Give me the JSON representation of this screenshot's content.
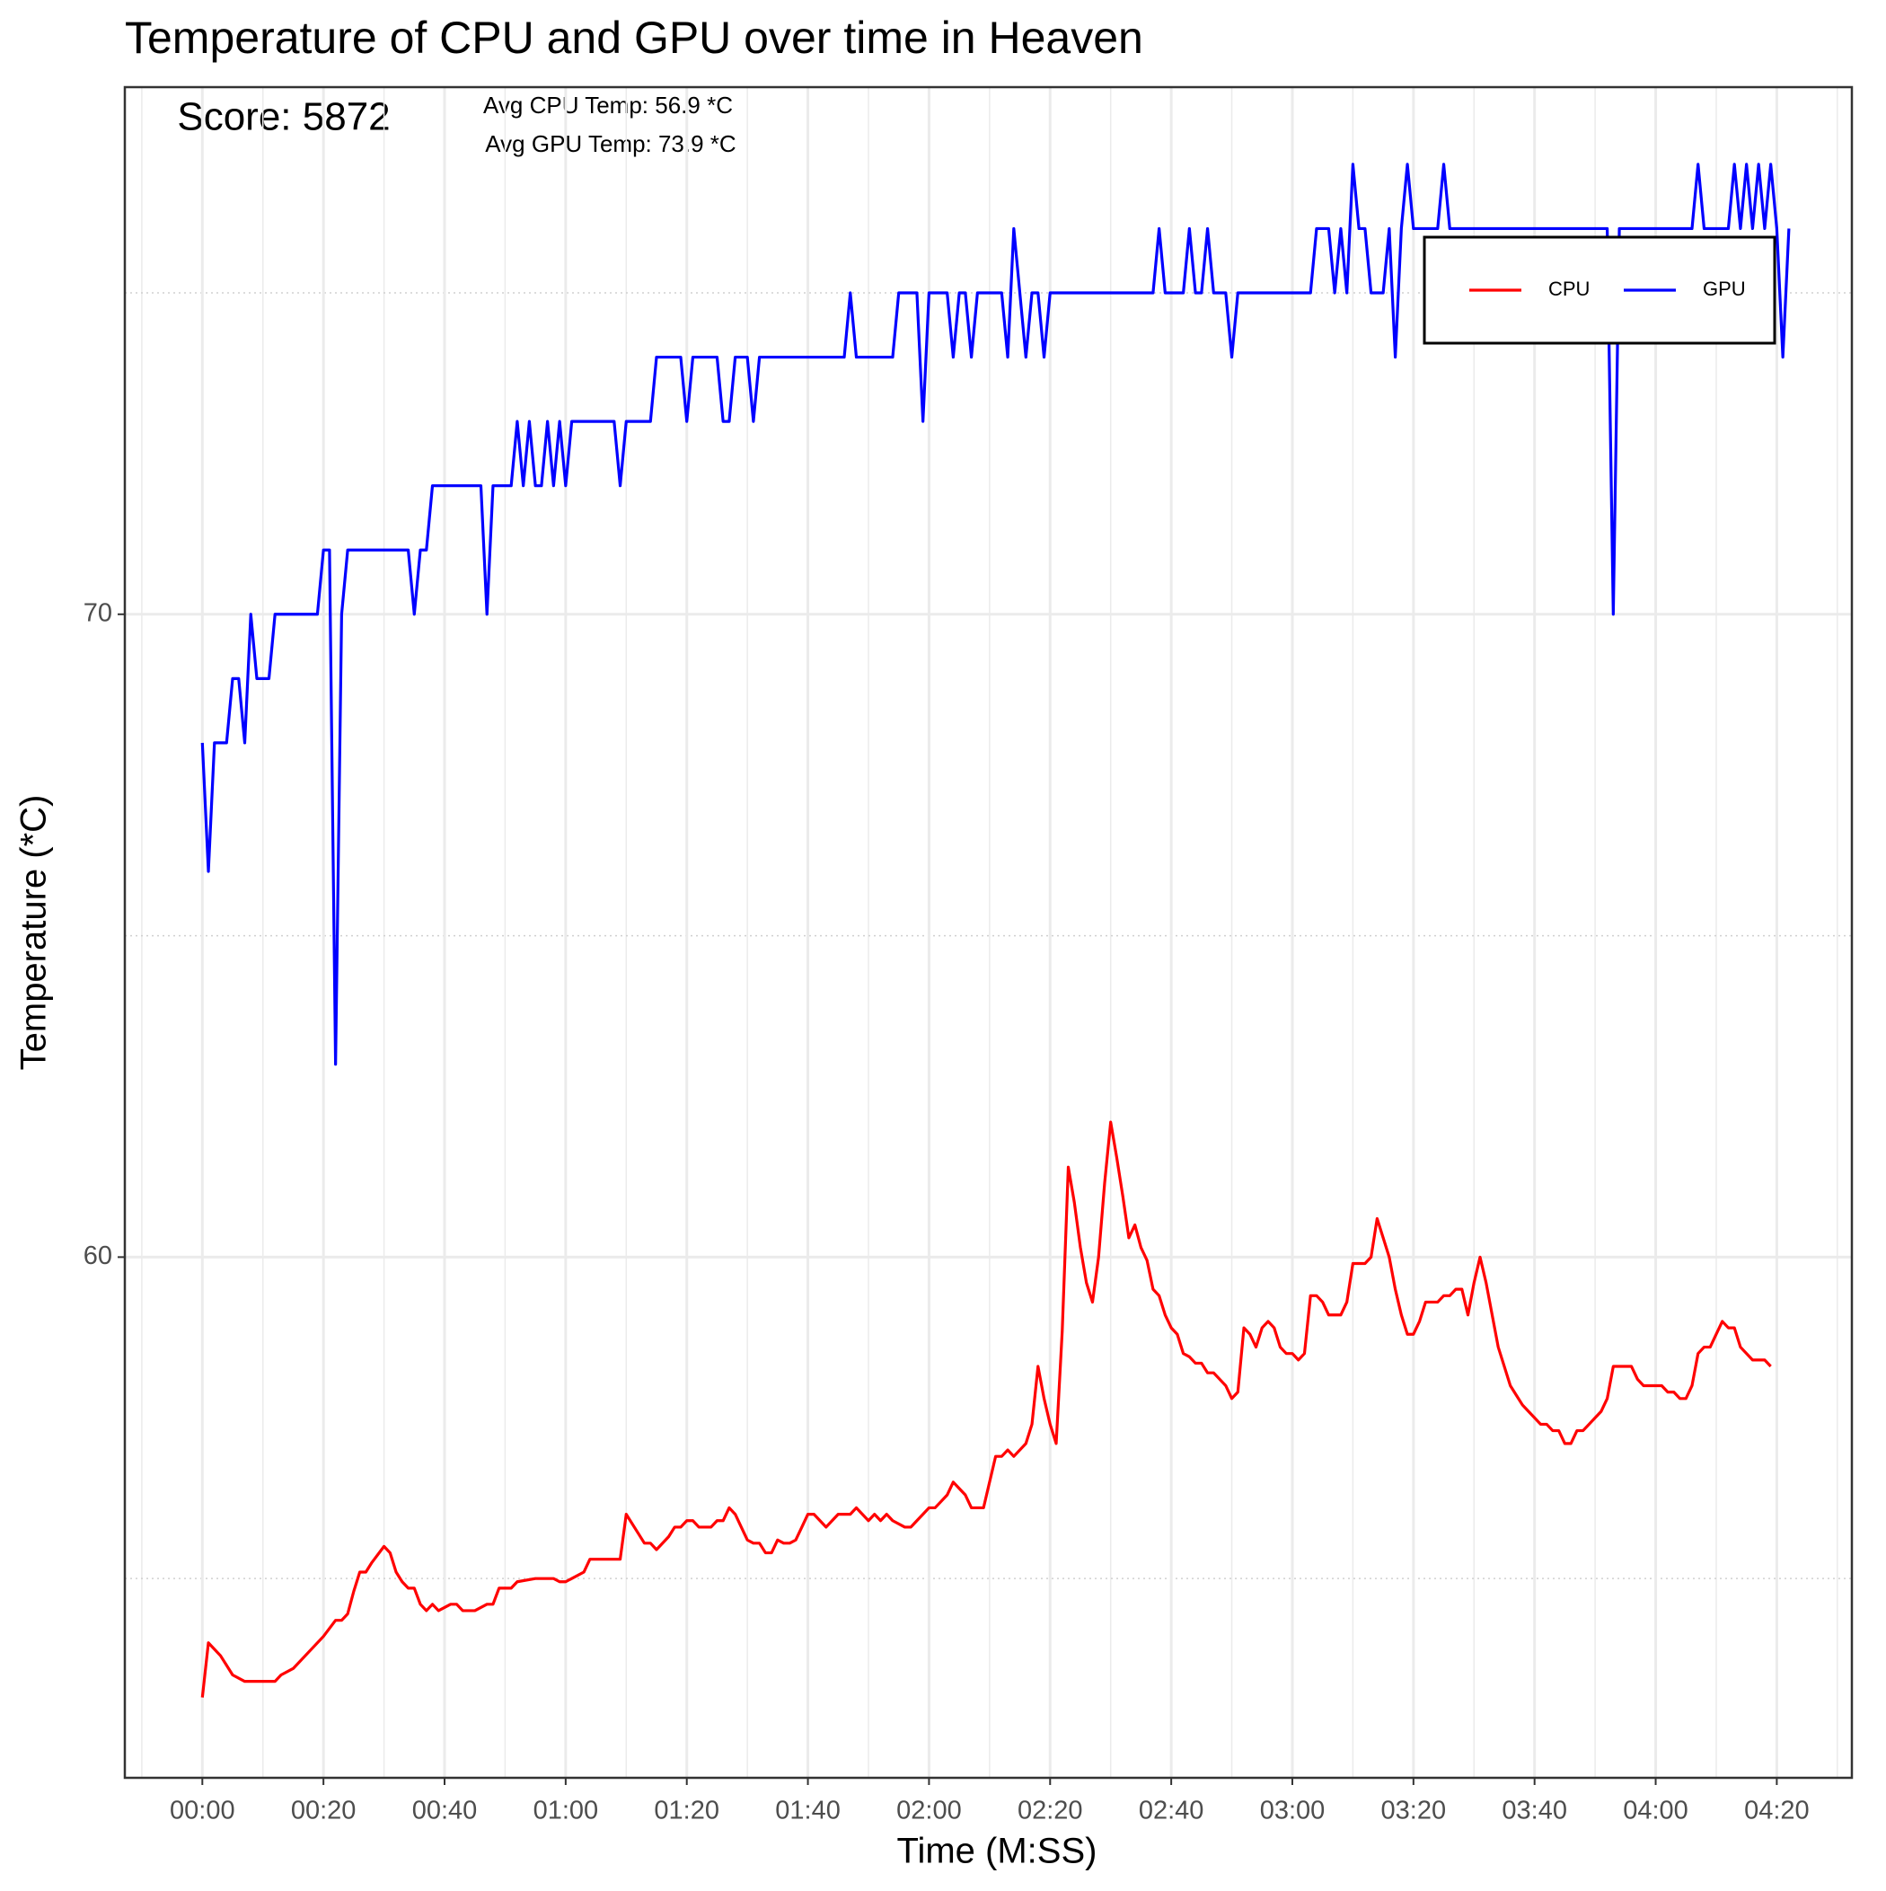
{
  "chart_data": {
    "type": "line",
    "title": "Temperature of CPU and GPU over time in Heaven",
    "x_label": "Time (M:SS)",
    "y_label": "Temperature (*C)",
    "annotations": [
      "Score: 5872",
      "Avg CPU Temp: 56.9 *C",
      "Avg GPU Temp: 73.9 *C"
    ],
    "xlim": [
      -12.8,
      272.4
    ],
    "ylim": [
      51.9,
      78.2
    ],
    "xticks": [
      {
        "value": 0,
        "label": "00:00"
      },
      {
        "value": 20,
        "label": "00:20"
      },
      {
        "value": 40,
        "label": "00:40"
      },
      {
        "value": 60,
        "label": "01:00"
      },
      {
        "value": 80,
        "label": "01:20"
      },
      {
        "value": 100,
        "label": "01:40"
      },
      {
        "value": 120,
        "label": "02:00"
      },
      {
        "value": 140,
        "label": "02:20"
      },
      {
        "value": 160,
        "label": "02:40"
      },
      {
        "value": 180,
        "label": "03:00"
      },
      {
        "value": 200,
        "label": "03:20"
      },
      {
        "value": 220,
        "label": "03:40"
      },
      {
        "value": 240,
        "label": "04:00"
      },
      {
        "value": 260,
        "label": "04:20"
      }
    ],
    "xminorticks": [
      -10,
      10,
      30,
      50,
      70,
      90,
      110,
      130,
      150,
      170,
      190,
      210,
      230,
      250,
      270
    ],
    "yticks": [
      60,
      70
    ],
    "yminorticks": [
      55,
      65,
      75
    ],
    "grid": true,
    "legend_position": "top-right",
    "series": [
      {
        "name": "CPU",
        "color": "#ff0000",
        "x": [
          0,
          1,
          3,
          4,
          5,
          7,
          12,
          13,
          15,
          17,
          20,
          22,
          23,
          24,
          25,
          26,
          27,
          28,
          30,
          31,
          32,
          33,
          34,
          35,
          36,
          37,
          38,
          39,
          41,
          42,
          43,
          45,
          47,
          48,
          49,
          51,
          52,
          55,
          58,
          59,
          60,
          61,
          63,
          64,
          69,
          70,
          72,
          73,
          74,
          75,
          77,
          78,
          79,
          80,
          81,
          82,
          84,
          85,
          86,
          87,
          88,
          89,
          90,
          91,
          92,
          93,
          94,
          95,
          96,
          97,
          98,
          99,
          100,
          101,
          102,
          103,
          104,
          105,
          107,
          108,
          109,
          110,
          111,
          112,
          113,
          114,
          116,
          117,
          118,
          119,
          120,
          121,
          122,
          123,
          124,
          125,
          126,
          127,
          128,
          129,
          130,
          131,
          132,
          133,
          134,
          135,
          136,
          137,
          138,
          139,
          140,
          141,
          142,
          143,
          144,
          145,
          146,
          147,
          148,
          149,
          150,
          151,
          152,
          153,
          154,
          155,
          156,
          157,
          158,
          159,
          160,
          161,
          162,
          163,
          164,
          165,
          166,
          167,
          168,
          169,
          170,
          171,
          172,
          173,
          174,
          175,
          176,
          177,
          178,
          179,
          180,
          181,
          182,
          183,
          184,
          185,
          186,
          187,
          188,
          189,
          190,
          191,
          192,
          193,
          194,
          195,
          196,
          197,
          198,
          199,
          200,
          201,
          202,
          203,
          204,
          205,
          206,
          207,
          208,
          209,
          210,
          211,
          212,
          213,
          214,
          215,
          216,
          217,
          218,
          219,
          220,
          221,
          222,
          223,
          224,
          225,
          226,
          227,
          228,
          229,
          230,
          231,
          232,
          233,
          234,
          236,
          237,
          238,
          241,
          242,
          243,
          244,
          245,
          246,
          247,
          248,
          249,
          250,
          251,
          252,
          253,
          254,
          255,
          256,
          257,
          258,
          259
        ],
        "values": [
          53.15,
          54.0,
          53.8,
          53.65,
          53.5,
          53.4,
          53.4,
          53.5,
          53.6,
          53.8,
          54.1,
          54.35,
          54.35,
          54.45,
          54.8,
          55.1,
          55.1,
          55.25,
          55.5,
          55.4,
          55.1,
          54.95,
          54.85,
          54.85,
          54.6,
          54.5,
          54.6,
          54.5,
          54.6,
          54.6,
          54.5,
          54.5,
          54.6,
          54.6,
          54.85,
          54.85,
          54.95,
          55.0,
          55.0,
          54.95,
          54.95,
          55.0,
          55.1,
          55.3,
          55.3,
          56.0,
          55.7,
          55.55,
          55.55,
          55.45,
          55.65,
          55.8,
          55.8,
          55.9,
          55.9,
          55.8,
          55.8,
          55.9,
          55.9,
          56.1,
          56.0,
          55.8,
          55.6,
          55.55,
          55.55,
          55.4,
          55.4,
          55.6,
          55.55,
          55.55,
          55.6,
          55.8,
          56.0,
          56.0,
          55.9,
          55.8,
          55.9,
          56.0,
          56.0,
          56.1,
          56.0,
          55.9,
          56.0,
          55.9,
          56.0,
          55.9,
          55.8,
          55.8,
          55.9,
          56.0,
          56.1,
          56.1,
          56.2,
          56.3,
          56.5,
          56.4,
          56.3,
          56.1,
          56.1,
          56.1,
          56.5,
          56.9,
          56.9,
          57.0,
          56.9,
          57.0,
          57.1,
          57.4,
          58.3,
          57.8,
          57.4,
          57.1,
          58.85,
          61.4,
          60.85,
          60.15,
          59.6,
          59.3,
          60.0,
          61.15,
          62.1,
          61.55,
          60.95,
          60.3,
          60.5,
          60.15,
          59.95,
          59.5,
          59.4,
          59.1,
          58.9,
          58.8,
          58.5,
          58.45,
          58.35,
          58.35,
          58.2,
          58.2,
          58.1,
          58.0,
          57.8,
          57.9,
          58.9,
          58.8,
          58.6,
          58.9,
          59.0,
          58.9,
          58.6,
          58.5,
          58.5,
          58.4,
          58.5,
          59.4,
          59.4,
          59.3,
          59.1,
          59.1,
          59.1,
          59.3,
          59.9,
          59.9,
          59.9,
          60.0,
          60.6,
          60.3,
          60.0,
          59.5,
          59.1,
          58.8,
          58.8,
          59.0,
          59.3,
          59.3,
          59.3,
          59.4,
          59.4,
          59.5,
          59.5,
          59.1,
          59.6,
          60.0,
          59.6,
          59.1,
          58.6,
          58.3,
          58.0,
          57.85,
          57.7,
          57.6,
          57.5,
          57.4,
          57.4,
          57.3,
          57.3,
          57.1,
          57.1,
          57.3,
          57.3,
          57.4,
          57.5,
          57.6,
          57.8,
          58.3,
          58.3,
          58.3,
          58.1,
          58.0,
          58.0,
          57.9,
          57.9,
          57.8,
          57.8,
          58.0,
          58.5,
          58.6,
          58.6,
          58.8,
          59.0,
          58.9,
          58.9,
          58.6,
          58.5,
          58.4,
          58.4,
          58.4,
          58.3
        ]
      },
      {
        "name": "GPU",
        "color": "#0000ff",
        "x": [
          0,
          1,
          2,
          4,
          5,
          6,
          7,
          8,
          9,
          11,
          12,
          19,
          20,
          21,
          22,
          23,
          24,
          34,
          35,
          36,
          37,
          38,
          46,
          47,
          48,
          51,
          52,
          53,
          54,
          55,
          56,
          57,
          58,
          59,
          60,
          61,
          68,
          69,
          70,
          74,
          75,
          79,
          80,
          81,
          85,
          86,
          87,
          88,
          90,
          91,
          92,
          106,
          107,
          108,
          114,
          115,
          118,
          119,
          120,
          123,
          124,
          125,
          126,
          127,
          128,
          132,
          133,
          134,
          135,
          136,
          137,
          138,
          139,
          140,
          157,
          158,
          159,
          162,
          163,
          164,
          165,
          166,
          167,
          169,
          170,
          171,
          183,
          184,
          186,
          187,
          188,
          189,
          190,
          191,
          192,
          193,
          195,
          196,
          197,
          198,
          199,
          200,
          204,
          205,
          206,
          232,
          233,
          234,
          246,
          247,
          248,
          252,
          253,
          254,
          255,
          256,
          257,
          258,
          259,
          260,
          261,
          262
        ],
        "values": [
          68,
          66,
          68,
          68,
          69,
          69,
          68,
          70,
          69,
          69,
          70,
          70,
          71,
          71,
          63,
          70,
          71,
          71,
          70,
          71,
          71,
          72,
          72,
          70,
          72,
          72,
          73,
          72,
          73,
          72,
          72,
          73,
          72,
          73,
          72,
          73,
          73,
          72,
          73,
          73,
          74,
          74,
          73,
          74,
          74,
          73,
          73,
          74,
          74,
          73,
          74,
          74,
          75,
          74,
          74,
          75,
          75,
          73,
          75,
          75,
          74,
          75,
          75,
          74,
          75,
          75,
          74,
          76,
          75,
          74,
          75,
          75,
          74,
          75,
          75,
          76,
          75,
          75,
          76,
          75,
          75,
          76,
          75,
          75,
          74,
          75,
          75,
          76,
          76,
          75,
          76,
          75,
          77,
          76,
          76,
          75,
          75,
          76,
          74,
          76,
          77,
          76,
          76,
          77,
          76,
          76,
          70,
          76,
          76,
          77,
          76,
          76,
          77,
          76,
          77,
          76,
          77,
          76,
          77,
          76,
          74,
          76
        ]
      }
    ]
  }
}
